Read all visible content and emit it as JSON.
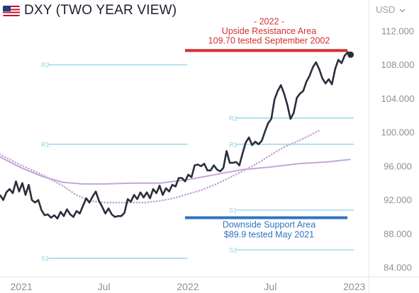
{
  "header": {
    "flag_icon": "us-flag-icon",
    "title": "DXY (TWO YEAR VIEW)",
    "currency_label": "USD",
    "currency_menu_icon": "chevron-down-icon"
  },
  "chart_data": {
    "type": "line",
    "title": "DXY (TWO YEAR VIEW)",
    "x_axis": {
      "start": "2020-11-15",
      "end": "2023-01-31",
      "tick_labels": [
        {
          "date": "2021-01-01",
          "label": "2021"
        },
        {
          "date": "2021-07-01",
          "label": "Jul"
        },
        {
          "date": "2022-01-01",
          "label": "2022"
        },
        {
          "date": "2022-07-01",
          "label": "Jul"
        },
        {
          "date": "2023-01-01",
          "label": "2023"
        }
      ]
    },
    "y_axis": {
      "min": 83,
      "max": 114,
      "position": "right",
      "tick_labels": [
        "112.000",
        "108.000",
        "104.000",
        "100.000",
        "96.000",
        "92.000",
        "88.000",
        "84.000"
      ],
      "tick_values": [
        112,
        108,
        104,
        100,
        96,
        92,
        88,
        84
      ]
    },
    "grid": false,
    "colors": {
      "price": "#2b2e3a",
      "average": "#c3a7d6",
      "pivot": "#8fd3e4",
      "resistance": "#d32f2f",
      "support": "#2f74c0",
      "axis_text": "#8c9099"
    },
    "series": [
      {
        "style": "solid-dark",
        "points": [
          [
            "2020-11-15",
            92.6
          ],
          [
            "2020-11-22",
            92.0
          ],
          [
            "2020-11-29",
            92.9
          ],
          [
            "2020-12-06",
            93.3
          ],
          [
            "2020-12-13",
            92.8
          ],
          [
            "2020-12-20",
            94.2
          ],
          [
            "2020-12-27",
            93.0
          ],
          [
            "2021-01-03",
            94.0
          ],
          [
            "2021-01-10",
            92.6
          ],
          [
            "2021-01-17",
            93.8
          ],
          [
            "2021-01-24",
            92.0
          ],
          [
            "2021-01-31",
            91.7
          ],
          [
            "2021-02-07",
            92.0
          ],
          [
            "2021-02-14",
            90.8
          ],
          [
            "2021-02-21",
            90.2
          ],
          [
            "2021-02-28",
            90.3
          ],
          [
            "2021-03-07",
            89.9
          ],
          [
            "2021-03-14",
            90.2
          ],
          [
            "2021-03-21",
            89.8
          ],
          [
            "2021-03-28",
            90.6
          ],
          [
            "2021-04-04",
            90.1
          ],
          [
            "2021-04-11",
            90.9
          ],
          [
            "2021-04-18",
            90.3
          ],
          [
            "2021-04-25",
            90.0
          ],
          [
            "2021-05-02",
            90.7
          ],
          [
            "2021-05-09",
            90.4
          ],
          [
            "2021-05-16",
            91.3
          ],
          [
            "2021-05-23",
            92.2
          ],
          [
            "2021-05-30",
            91.7
          ],
          [
            "2021-06-06",
            92.4
          ],
          [
            "2021-06-13",
            93.0
          ],
          [
            "2021-06-20",
            91.9
          ],
          [
            "2021-06-27",
            91.2
          ],
          [
            "2021-07-04",
            90.4
          ],
          [
            "2021-07-11",
            91.0
          ],
          [
            "2021-07-18",
            90.3
          ],
          [
            "2021-07-25",
            90.0
          ],
          [
            "2021-08-01",
            90.1
          ],
          [
            "2021-08-08",
            90.1
          ],
          [
            "2021-08-15",
            90.5
          ],
          [
            "2021-08-22",
            92.1
          ],
          [
            "2021-08-29",
            91.8
          ],
          [
            "2021-09-05",
            92.6
          ],
          [
            "2021-09-12",
            92.1
          ],
          [
            "2021-09-19",
            92.9
          ],
          [
            "2021-09-26",
            92.3
          ],
          [
            "2021-10-03",
            92.9
          ],
          [
            "2021-10-10",
            92.2
          ],
          [
            "2021-10-17",
            93.3
          ],
          [
            "2021-10-24",
            92.8
          ],
          [
            "2021-10-31",
            93.7
          ],
          [
            "2021-11-07",
            92.6
          ],
          [
            "2021-11-14",
            93.4
          ],
          [
            "2021-11-21",
            93.0
          ],
          [
            "2021-11-28",
            93.8
          ],
          [
            "2021-12-05",
            93.6
          ],
          [
            "2021-12-12",
            94.6
          ],
          [
            "2021-12-19",
            94.6
          ],
          [
            "2021-12-26",
            94.2
          ],
          [
            "2022-01-02",
            95.0
          ],
          [
            "2022-01-09",
            94.7
          ],
          [
            "2022-01-16",
            96.1
          ],
          [
            "2022-01-23",
            96.2
          ],
          [
            "2022-01-30",
            96.0
          ],
          [
            "2022-02-06",
            96.3
          ],
          [
            "2022-02-13",
            95.5
          ],
          [
            "2022-02-20",
            95.5
          ],
          [
            "2022-02-27",
            96.1
          ],
          [
            "2022-03-06",
            95.6
          ],
          [
            "2022-03-13",
            95.4
          ],
          [
            "2022-03-20",
            95.8
          ],
          [
            "2022-03-27",
            97.8
          ],
          [
            "2022-04-03",
            96.4
          ],
          [
            "2022-04-10",
            96.4
          ],
          [
            "2022-04-17",
            96.5
          ],
          [
            "2022-04-24",
            96.1
          ],
          [
            "2022-05-01",
            97.5
          ],
          [
            "2022-05-08",
            98.8
          ],
          [
            "2022-05-15",
            99.4
          ],
          [
            "2022-05-22",
            98.5
          ],
          [
            "2022-05-29",
            98.9
          ],
          [
            "2022-06-05",
            98.6
          ],
          [
            "2022-06-12",
            99.0
          ],
          [
            "2022-06-19",
            100.1
          ],
          [
            "2022-06-26",
            101.1
          ],
          [
            "2022-07-03",
            101.6
          ],
          [
            "2022-07-10",
            103.9
          ],
          [
            "2022-07-17",
            104.9
          ],
          [
            "2022-07-24",
            105.6
          ],
          [
            "2022-07-31",
            104.6
          ],
          [
            "2022-08-07",
            103.3
          ],
          [
            "2022-08-14",
            101.6
          ],
          [
            "2022-08-21",
            102.3
          ],
          [
            "2022-08-28",
            104.1
          ],
          [
            "2022-09-04",
            104.6
          ],
          [
            "2022-09-11",
            104.9
          ],
          [
            "2022-09-18",
            106.0
          ],
          [
            "2022-09-25",
            106.7
          ],
          [
            "2022-10-02",
            107.7
          ],
          [
            "2022-10-09",
            108.3
          ],
          [
            "2022-10-16",
            107.5
          ],
          [
            "2022-10-23",
            106.4
          ],
          [
            "2022-10-30",
            105.8
          ],
          [
            "2022-11-06",
            106.3
          ],
          [
            "2022-11-13",
            105.7
          ],
          [
            "2022-11-20",
            107.5
          ],
          [
            "2022-11-27",
            108.6
          ],
          [
            "2022-12-04",
            108.2
          ],
          [
            "2022-12-11",
            109.1
          ],
          [
            "2022-12-18",
            109.5
          ],
          [
            "2022-12-24",
            109.2
          ]
        ]
      },
      {
        "style": "dotted-purple",
        "points": [
          [
            "2020-11-15",
            97.4
          ],
          [
            "2021-01-01",
            96.1
          ],
          [
            "2021-02-15",
            95.0
          ],
          [
            "2021-04-01",
            93.7
          ],
          [
            "2021-05-01",
            92.6
          ],
          [
            "2021-06-01",
            91.9
          ],
          [
            "2021-07-01",
            91.7
          ],
          [
            "2021-08-01",
            91.7
          ],
          [
            "2021-09-01",
            91.7
          ],
          [
            "2021-10-01",
            91.7
          ],
          [
            "2021-11-01",
            91.9
          ],
          [
            "2021-12-01",
            92.2
          ],
          [
            "2022-01-01",
            92.7
          ],
          [
            "2022-02-01",
            93.2
          ],
          [
            "2022-03-01",
            93.8
          ],
          [
            "2022-04-01",
            94.6
          ],
          [
            "2022-05-01",
            95.4
          ],
          [
            "2022-06-01",
            96.3
          ],
          [
            "2022-07-01",
            97.3
          ],
          [
            "2022-08-01",
            98.3
          ],
          [
            "2022-09-01",
            99.0
          ],
          [
            "2022-10-01",
            99.8
          ],
          [
            "2022-10-15",
            100.2
          ]
        ]
      },
      {
        "style": "solid-purple",
        "points": [
          [
            "2020-11-15",
            97.1
          ],
          [
            "2021-01-01",
            95.8
          ],
          [
            "2021-02-15",
            94.8
          ],
          [
            "2021-04-01",
            94.1
          ],
          [
            "2021-05-15",
            93.9
          ],
          [
            "2021-07-01",
            93.9
          ],
          [
            "2021-09-01",
            94.0
          ],
          [
            "2021-11-01",
            94.0
          ],
          [
            "2022-01-01",
            94.4
          ],
          [
            "2022-03-01",
            95.0
          ],
          [
            "2022-05-01",
            95.6
          ],
          [
            "2022-07-01",
            95.9
          ],
          [
            "2022-09-01",
            96.3
          ],
          [
            "2022-11-01",
            96.5
          ],
          [
            "2022-12-24",
            96.8
          ]
        ]
      }
    ],
    "levels": [
      {
        "name": "R2",
        "value": 108.0,
        "start": "2020-11-15",
        "end": "2021-12-31",
        "style": "pivot"
      },
      {
        "name": "R1",
        "value": 98.6,
        "start": "2020-11-15",
        "end": "2021-12-31",
        "style": "pivot"
      },
      {
        "name": "S1",
        "value": 85.1,
        "start": "2020-11-15",
        "end": "2021-12-31",
        "style": "pivot"
      },
      {
        "name": "R2",
        "value": 101.7,
        "start": "2022-01-01",
        "end": "2022-12-31",
        "style": "pivot"
      },
      {
        "name": "R1",
        "value": 98.6,
        "start": "2022-01-01",
        "end": "2022-12-31",
        "style": "pivot"
      },
      {
        "name": "S1",
        "value": 90.8,
        "start": "2022-01-01",
        "end": "2022-12-31",
        "style": "pivot"
      },
      {
        "name": "S2",
        "value": 86.1,
        "start": "2022-01-01",
        "end": "2022-12-31",
        "style": "pivot"
      }
    ],
    "annotations": [
      {
        "kind": "resistance",
        "value": 109.7,
        "start": "2022-01-01",
        "end": "2022-12-31",
        "text_lines": [
          "- 2022 -",
          "Upside Resistance Area",
          "109.70 tested September 2002"
        ]
      },
      {
        "kind": "support",
        "value": 89.9,
        "start": "2022-01-01",
        "end": "2022-12-31",
        "text_lines": [
          "Downside Support Area",
          "$89.9 tested May 2021"
        ]
      }
    ],
    "last_point_marker": {
      "date": "2022-12-24",
      "value": 109.2
    }
  }
}
